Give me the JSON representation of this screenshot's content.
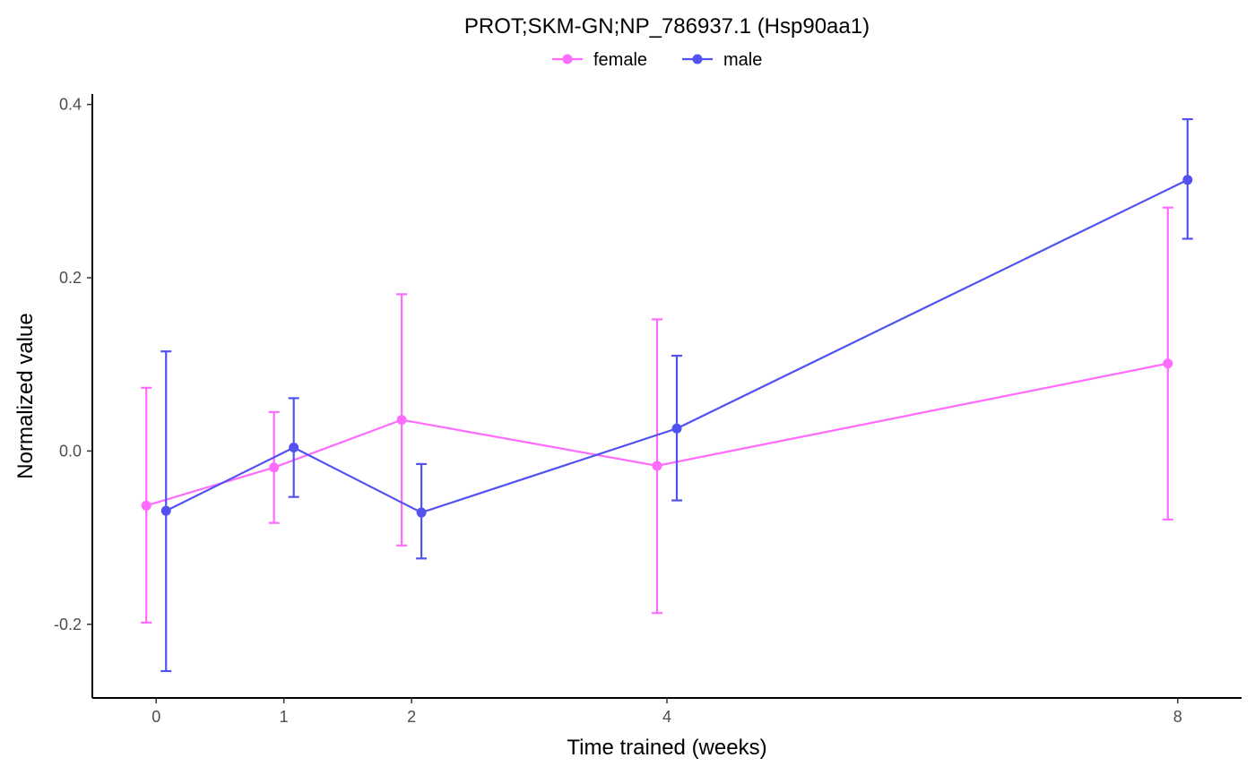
{
  "chart_data": {
    "type": "line",
    "title": "PROT;SKM-GN;NP_786937.1 (Hsp90aa1)",
    "xlabel": "Time trained (weeks)",
    "ylabel": "Normalized value",
    "x_ticks": [
      0,
      1,
      2,
      4,
      8
    ],
    "x_tick_labels": [
      "0",
      "1",
      "2",
      "4",
      "8"
    ],
    "y_ticks": [
      -0.2,
      0.0,
      0.2,
      0.4
    ],
    "y_tick_labels": [
      "-0.2",
      "0.0",
      "0.2",
      "0.4"
    ],
    "xlim": [
      -0.5,
      8.5
    ],
    "ylim": [
      -0.285,
      0.412
    ],
    "grid": false,
    "legend_position": "top",
    "series": [
      {
        "name": "female",
        "color": "#ff6bff",
        "x": [
          0,
          1,
          2,
          4,
          8
        ],
        "y": [
          -0.063,
          -0.019,
          0.036,
          -0.017,
          0.101
        ],
        "err_low": [
          -0.198,
          -0.083,
          -0.109,
          -0.187,
          -0.079
        ],
        "err_high": [
          0.073,
          0.045,
          0.181,
          0.152,
          0.281
        ]
      },
      {
        "name": "male",
        "color": "#5252f0",
        "x": [
          0,
          1,
          2,
          4,
          8
        ],
        "y": [
          -0.069,
          0.004,
          -0.071,
          0.026,
          0.313
        ],
        "err_low": [
          -0.254,
          -0.053,
          -0.124,
          -0.057,
          0.245
        ],
        "err_high": [
          0.115,
          0.061,
          -0.015,
          0.11,
          0.383
        ]
      }
    ]
  }
}
